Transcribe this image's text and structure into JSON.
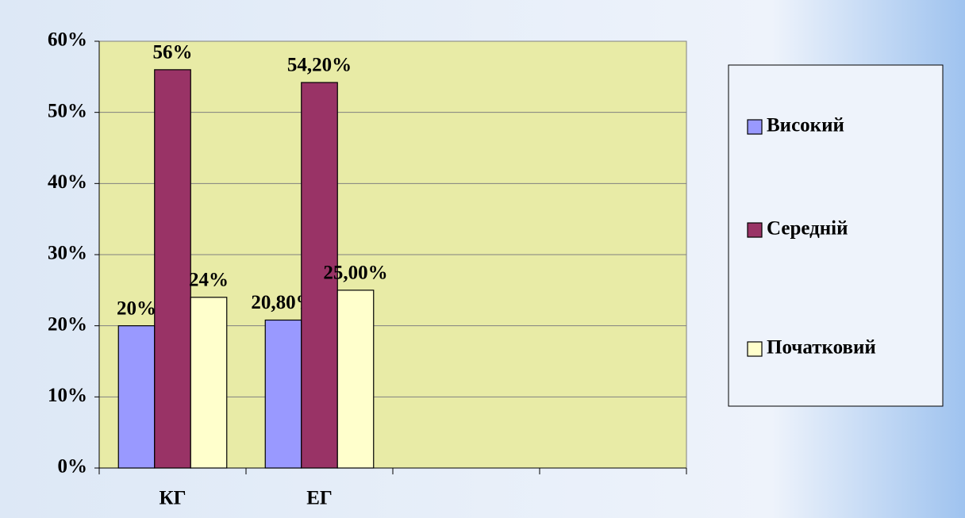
{
  "chart_data": {
    "type": "bar",
    "categories": [
      "КГ",
      "ЕГ",
      null,
      null
    ],
    "series": [
      {
        "name": "Високий",
        "color": "#9999ff",
        "values": [
          20,
          20.8,
          null,
          null
        ],
        "value_labels": [
          "20%",
          "20,80%",
          null,
          null
        ]
      },
      {
        "name": "Середній",
        "color": "#993366",
        "values": [
          56,
          54.2,
          null,
          null
        ],
        "value_labels": [
          "56%",
          "54,20%",
          null,
          null
        ]
      },
      {
        "name": "Початковий",
        "color": "#ffffcc",
        "values": [
          24,
          25,
          null,
          null
        ],
        "value_labels": [
          "24%",
          "25,00%",
          null,
          null
        ]
      }
    ],
    "ylim": [
      0,
      60
    ],
    "yticks": [
      {
        "value": 0,
        "label": "0%"
      },
      {
        "value": 10,
        "label": "10%"
      },
      {
        "value": 20,
        "label": "20%"
      },
      {
        "value": 30,
        "label": "30%"
      },
      {
        "value": 40,
        "label": "40%"
      },
      {
        "value": 50,
        "label": "50%"
      },
      {
        "value": 60,
        "label": "60%"
      }
    ],
    "grid": true,
    "legend": "right",
    "plot_background": "#e8eba6"
  }
}
